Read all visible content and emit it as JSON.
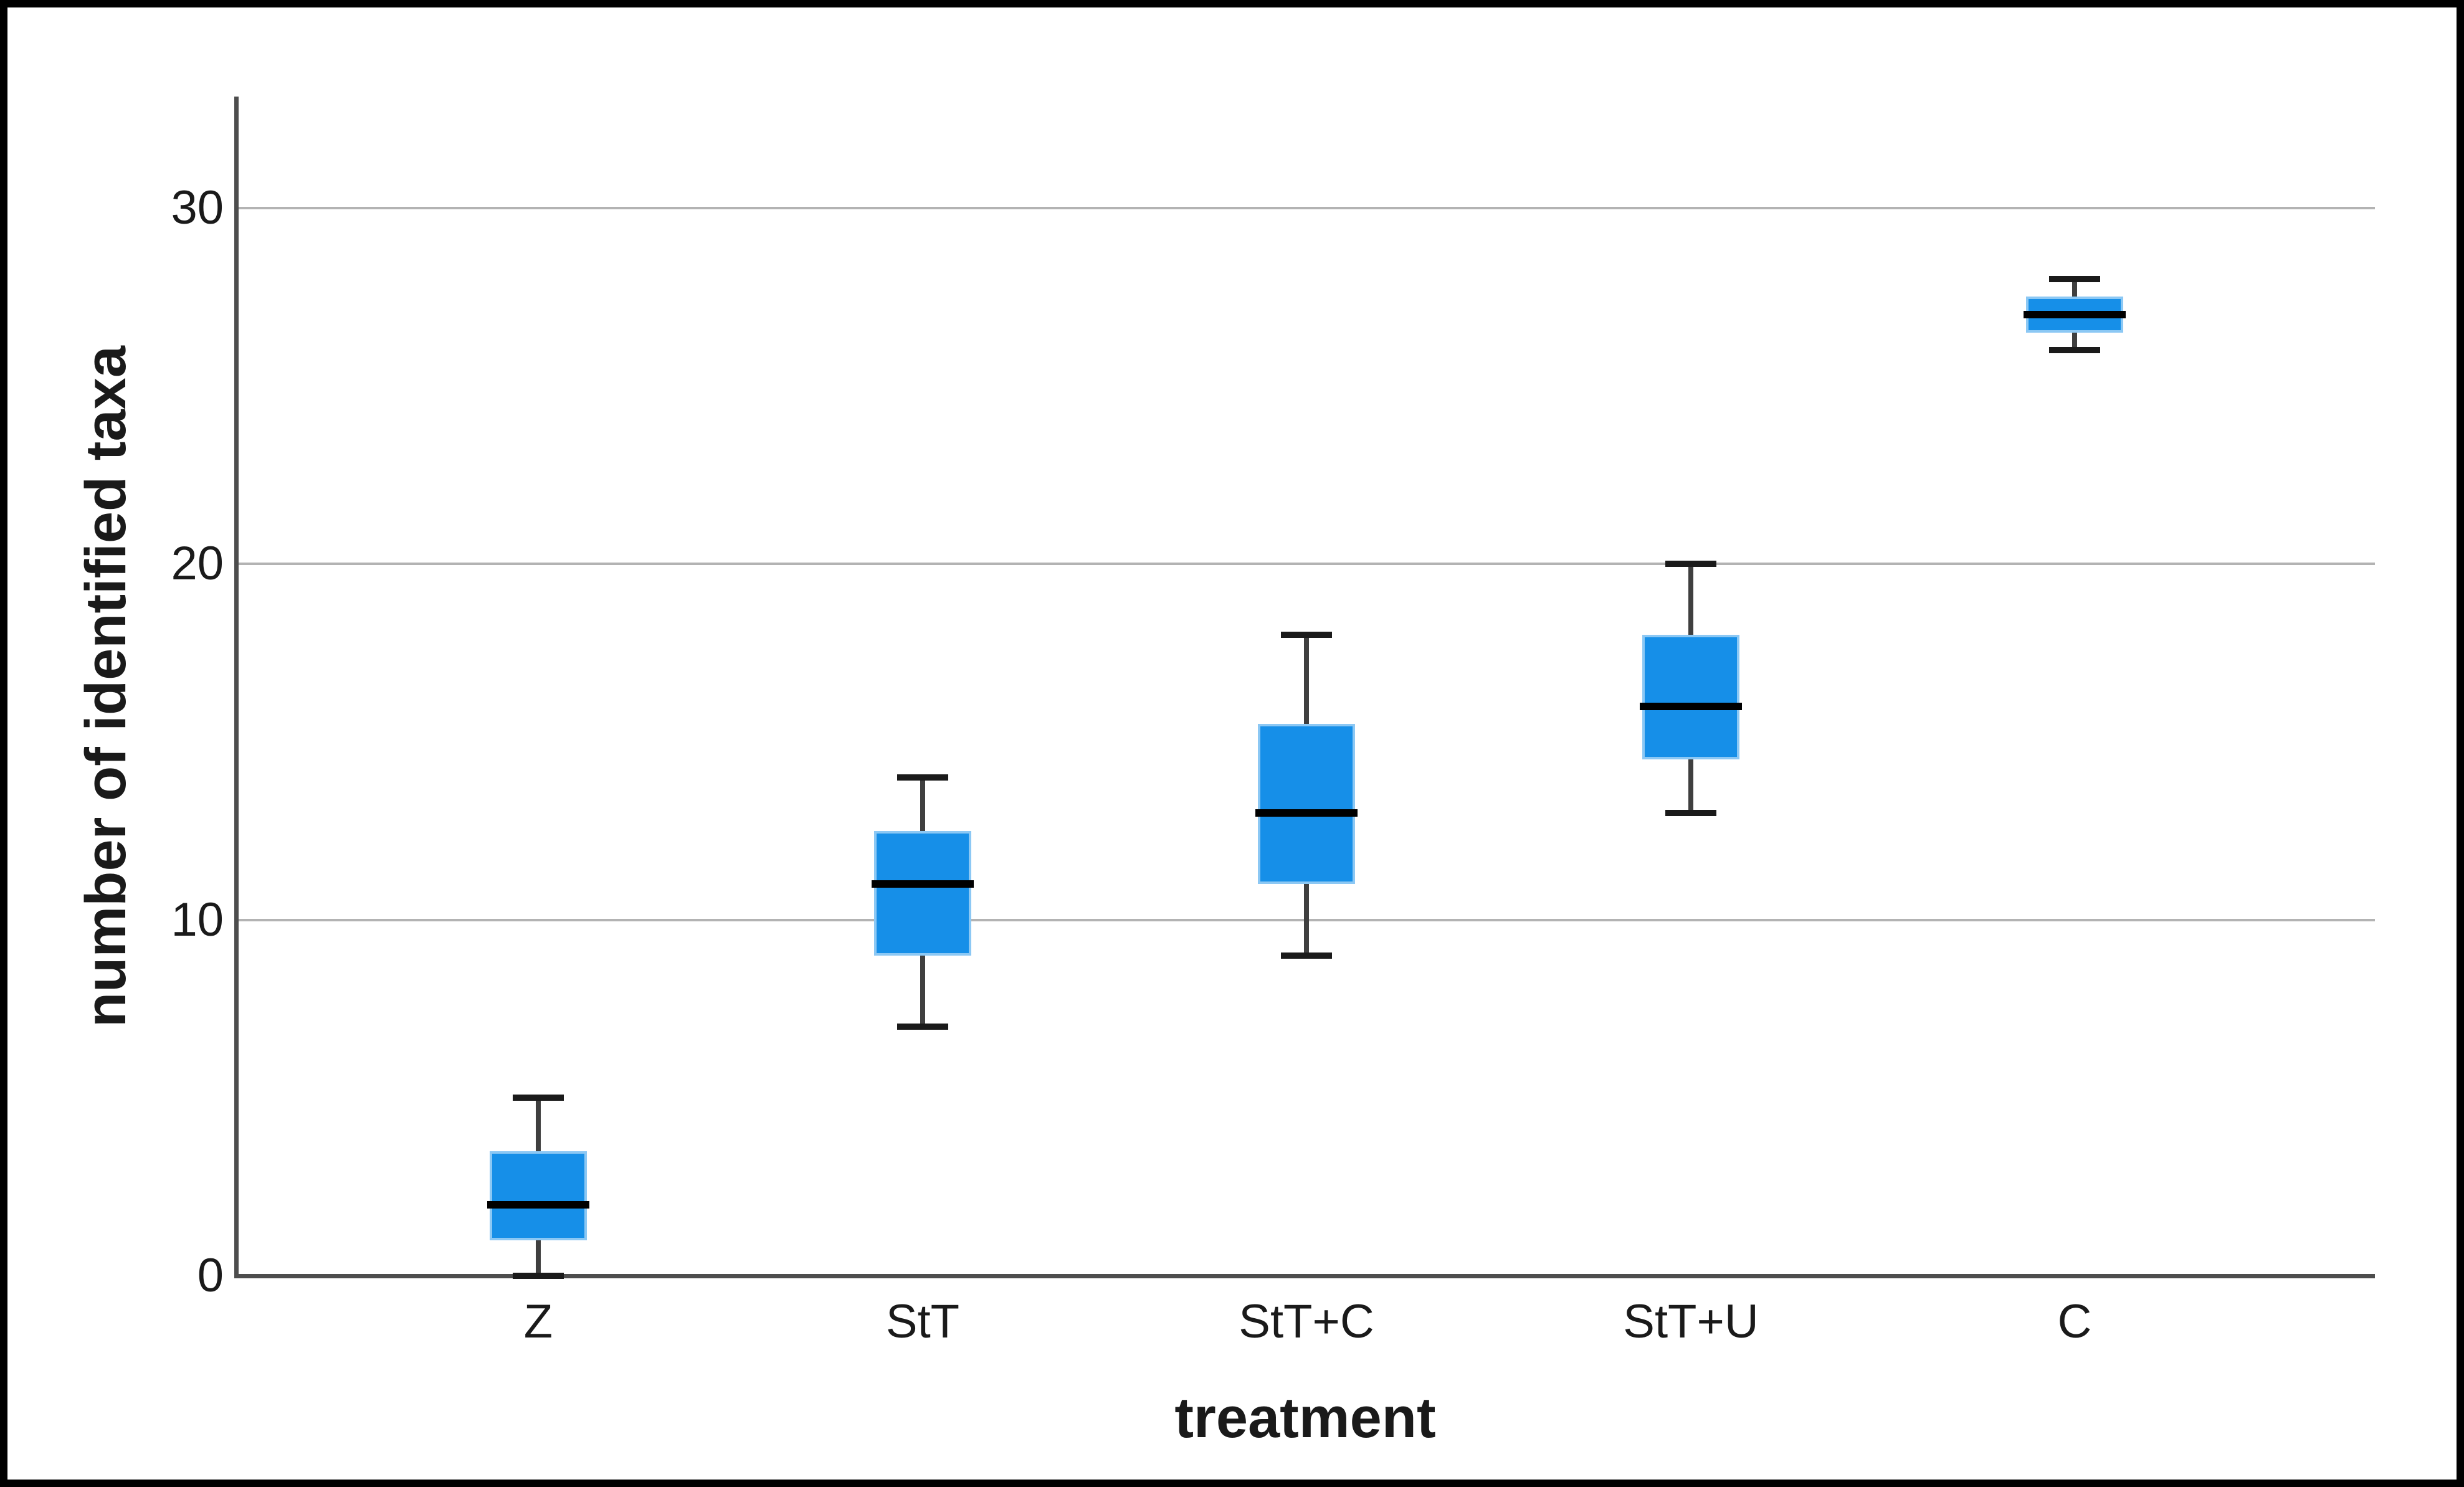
{
  "chart_data": {
    "type": "boxplot",
    "title": "",
    "xlabel": "treatment",
    "ylabel": "number of identified taxa",
    "categories": [
      "Z",
      "StT",
      "StT+C",
      "StT+U",
      "C"
    ],
    "y_ticks": [
      0,
      10,
      20,
      30
    ],
    "ylim": [
      0,
      33
    ],
    "grid": "horizontal-gridlines-at-10-20-30",
    "legend": "none",
    "series": [
      {
        "category": "Z",
        "whisker_low": 0,
        "q1": 1,
        "median": 2,
        "q3": 3.5,
        "whisker_high": 5
      },
      {
        "category": "StT",
        "whisker_low": 7,
        "q1": 9,
        "median": 11,
        "q3": 12.5,
        "whisker_high": 14
      },
      {
        "category": "StT+C",
        "whisker_low": 9,
        "q1": 11,
        "median": 13,
        "q3": 15.5,
        "whisker_high": 18
      },
      {
        "category": "StT+U",
        "whisker_low": 13,
        "q1": 14.5,
        "median": 16,
        "q3": 18,
        "whisker_high": 20
      },
      {
        "category": "C",
        "whisker_low": 26,
        "q1": 26.5,
        "median": 27,
        "q3": 27.5,
        "whisker_high": 28
      }
    ],
    "colors": {
      "box_fill": "#168FE8",
      "box_edge": "#8CC8F4",
      "median_line": "#000000",
      "whisker_line": "#3F3F3F",
      "whisker_cap": "#1A1A1A",
      "gridline": "#B3B3B3",
      "axis_line": "#4D4D4D",
      "text": "#1A1A1A",
      "frame_border": "#000000",
      "background": "#FFFFFF"
    }
  }
}
